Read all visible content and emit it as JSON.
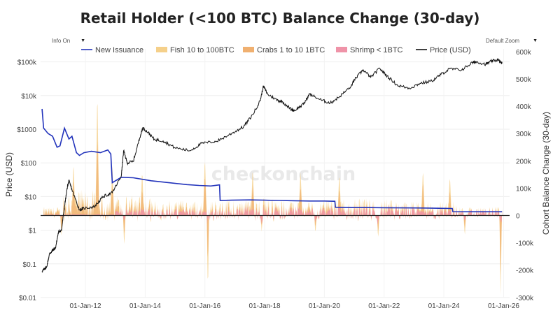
{
  "chart_data": {
    "type": "area",
    "title": "Retail Holder (<100 BTC) Balance Change (30-day)",
    "watermark": "checkonchain",
    "left_axis": {
      "label": "Price (USD)",
      "scale": "log",
      "ticks": [
        "$0.01",
        "$0.1",
        "$1",
        "$10",
        "$100",
        "$1000",
        "$10k",
        "$100k"
      ]
    },
    "right_axis": {
      "label": "Cohort Balance Change (30-day)",
      "ticks": [
        "-300k",
        "-200k",
        "-100k",
        "0",
        "100k",
        "200k",
        "300k",
        "400k",
        "500k",
        "600k"
      ]
    },
    "x_ticks": [
      "01-Jan-12",
      "01-Jan-14",
      "01-Jan-16",
      "01-Jan-18",
      "01-Jan-20",
      "01-Jan-22",
      "01-Jan-24",
      "01-Jan-26"
    ],
    "legend": [
      {
        "name": "New Issuance",
        "color": "#2233bb",
        "kind": "line"
      },
      {
        "name": "Fish 10 to 100BTC",
        "color": "#f5d08a",
        "kind": "area"
      },
      {
        "name": "Crabs 1 to 10 1BTC",
        "color": "#f0b070",
        "kind": "area"
      },
      {
        "name": "Shrimp < 1BTC",
        "color": "#ef93a8",
        "kind": "area"
      },
      {
        "name": "Price (USD)",
        "color": "#111111",
        "kind": "line"
      }
    ],
    "series": {
      "price": {
        "name": "Price (USD)",
        "x": [
          2010.55,
          2010.62,
          2010.7,
          2010.8,
          2010.9,
          2011.0,
          2011.1,
          2011.2,
          2011.3,
          2011.4,
          2011.45,
          2011.6,
          2011.8,
          2011.95,
          2012.3,
          2012.6,
          2012.9,
          2013.2,
          2013.28,
          2013.4,
          2013.6,
          2013.85,
          2013.92,
          2014.1,
          2014.3,
          2014.6,
          2015.0,
          2015.5,
          2015.9,
          2016.4,
          2016.9,
          2017.3,
          2017.6,
          2017.85,
          2017.96,
          2018.1,
          2018.4,
          2018.6,
          2018.9,
          2019.0,
          2019.3,
          2019.5,
          2019.9,
          2020.2,
          2020.5,
          2020.9,
          2021.0,
          2021.3,
          2021.55,
          2021.85,
          2022.1,
          2022.45,
          2022.85,
          2023.2,
          2023.6,
          2023.9,
          2024.2,
          2024.6,
          2024.95,
          2025.1,
          2025.4,
          2025.6,
          2025.8,
          2025.95
        ],
        "y": [
          0.06,
          0.07,
          0.08,
          0.2,
          0.25,
          0.3,
          0.9,
          1.0,
          5,
          20,
          29,
          12,
          4,
          4.5,
          5,
          10,
          13,
          40,
          230,
          100,
          110,
          700,
          1100,
          800,
          500,
          450,
          280,
          230,
          380,
          440,
          750,
          1200,
          2700,
          7000,
          19000,
          11000,
          7500,
          6500,
          3800,
          3600,
          5500,
          11000,
          7300,
          6000,
          9200,
          19000,
          29000,
          58000,
          35000,
          64000,
          38000,
          20000,
          16500,
          23000,
          27000,
          42000,
          62000,
          58000,
          95000,
          100000,
          85000,
          105000,
          115000,
          90000
        ]
      },
      "new_issuance": {
        "name": "New Issuance",
        "x": [
          2010.55,
          2010.6,
          2010.75,
          2010.9,
          2011.05,
          2011.15,
          2011.3,
          2011.45,
          2011.55,
          2011.7,
          2011.8,
          2011.95,
          2012.2,
          2012.5,
          2012.75,
          2012.85,
          2012.9,
          2013.2,
          2013.6,
          2014.2,
          2014.8,
          2015.4,
          2015.8,
          2016.2,
          2016.49,
          2016.51,
          2016.9,
          2017.5,
          2018.0,
          2018.5,
          2019.0,
          2019.5,
          2020.0,
          2020.35,
          2020.37,
          2020.9,
          2021.5,
          2022.0,
          2022.5,
          2023.0,
          2023.5,
          2024.0,
          2024.28,
          2024.3,
          2024.9,
          2025.5,
          2025.95
        ],
        "y": [
          390000,
          320000,
          300000,
          290000,
          250000,
          255000,
          320000,
          280000,
          290000,
          230000,
          220000,
          230000,
          235000,
          230000,
          240000,
          225000,
          120000,
          140000,
          138000,
          127000,
          120000,
          113000,
          110000,
          108000,
          112000,
          55000,
          56000,
          57000,
          56000,
          55000,
          54000,
          53000,
          53000,
          52000,
          30000,
          29000,
          29000,
          28500,
          28000,
          27500,
          27000,
          26000,
          25500,
          14000,
          13500,
          13500,
          13500
        ]
      },
      "fish": {
        "name": "Fish 10 to 100BTC",
        "color": "#f5d08a"
      },
      "crabs": {
        "name": "Crabs 1 to 10 1BTC",
        "color": "#f0b070"
      },
      "shrimp": {
        "name": "Shrimp < 1BTC",
        "color": "#ef93a8"
      }
    }
  }
}
